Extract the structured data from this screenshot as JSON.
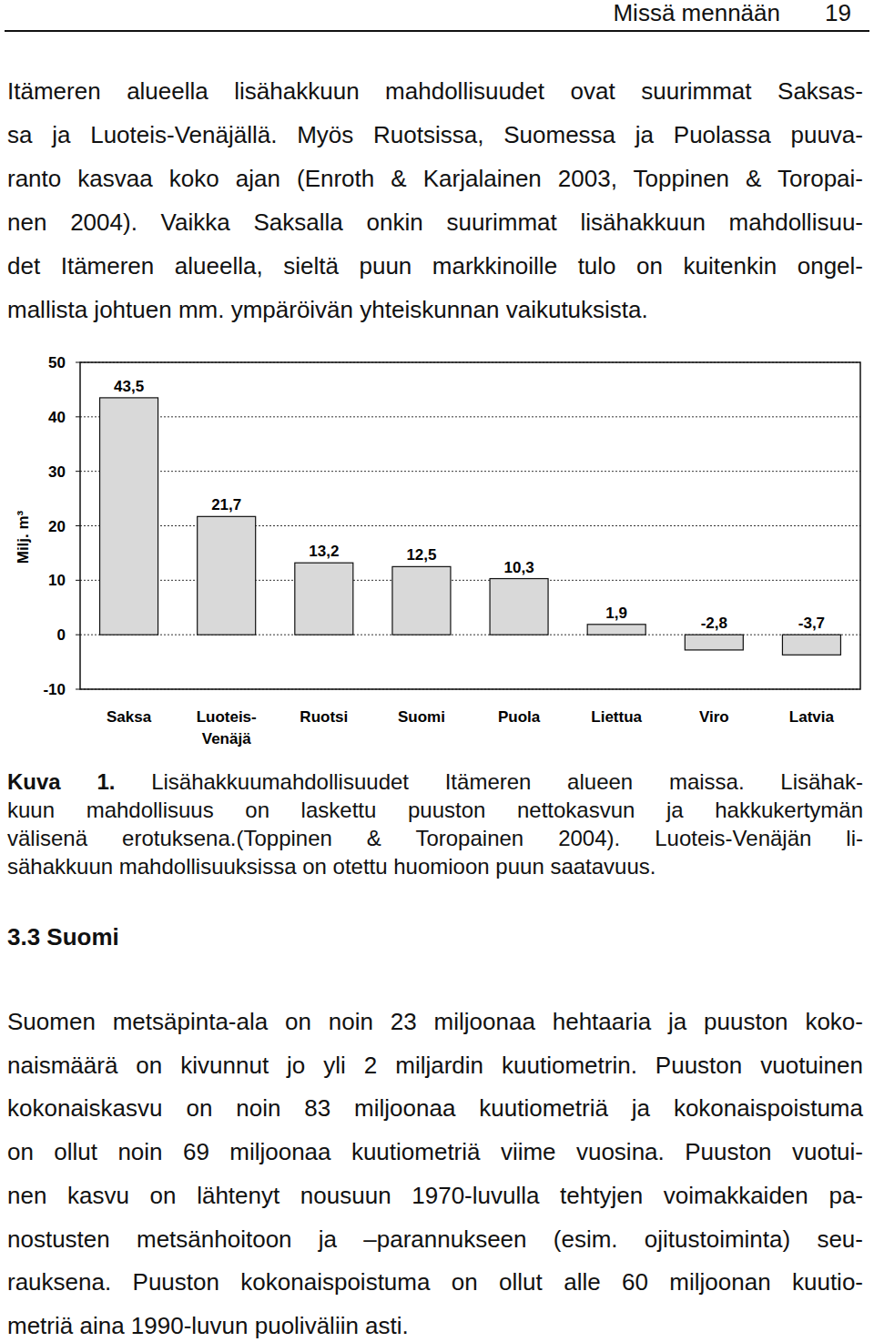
{
  "header": {
    "title": "Missä mennään",
    "page": "19"
  },
  "intro": {
    "lines": [
      "Itämeren alueella lisähakkuun mahdollisuudet ovat suurimmat Saksas-",
      "sa ja Luoteis-Venäjällä. Myös Ruotsissa, Suomessa ja Puolassa puuva-",
      "ranto kasvaa koko ajan (Enroth & Karjalainen 2003, Toppinen & Toropai-",
      "nen 2004). Vaikka Saksalla onkin suurimmat lisähakkuun mahdollisuu-",
      "det Itämeren alueella, sieltä puun markkinoille tulo on kuitenkin ongel-",
      "mallista johtuen mm. ympäröivän yhteiskunnan vaikutuksista."
    ]
  },
  "chart_data": {
    "type": "bar",
    "y_label": "Milj. m³",
    "categories": [
      "Saksa",
      "Luoteis-Venäjä",
      "Ruotsi",
      "Suomi",
      "Puola",
      "Liettua",
      "Viro",
      "Latvia"
    ],
    "values": [
      43.5,
      21.7,
      13.2,
      12.5,
      10.3,
      1.9,
      -2.8,
      -3.7
    ],
    "value_labels": [
      "43,5",
      "21,7",
      "13,2",
      "12,5",
      "10,3",
      "1,9",
      "-2,8",
      "-3,7"
    ],
    "data_labels": true,
    "color": "#d9d9d9",
    "ylim": [
      -10,
      50
    ],
    "yticks": [
      -10,
      0,
      10,
      20,
      30,
      40,
      50
    ],
    "grid": true
  },
  "caption": {
    "label": "Kuva 1.",
    "lines": [
      "Lisähakkuumahdollisuudet Itämeren alueen maissa. Lisähak-",
      "kuun mahdollisuus on laskettu puuston nettokasvun ja hakkukertymän",
      "välisenä erotuksena.(Toppinen & Toropainen 2004). Luoteis-Venäjän li-",
      "sähakkuun mahdollisuuksissa on otettu huomioon puun saatavuus."
    ]
  },
  "section": {
    "heading": "3.3 Suomi",
    "lines": [
      "Suomen metsäpinta-ala on noin 23 miljoonaa hehtaaria ja puuston koko-",
      "naismäärä on kivunnut jo yli 2 miljardin kuutiometrin. Puuston vuotuinen",
      "kokonaiskasvu on noin 83 miljoonaa kuutiometriä ja kokonaispoistuma",
      "on ollut noin 69 miljoonaa kuutiometriä viime vuosina.  Puuston vuotui-",
      "nen kasvu on lähtenyt nousuun 1970-luvulla tehtyjen voimakkaiden pa-",
      "nostusten metsänhoitoon ja –parannukseen (esim. ojitustoiminta) seu-",
      "rauksena. Puuston kokonaispoistuma on ollut alle 60 miljoonan kuutio-",
      "metriä aina 1990-luvun puoliväliin asti."
    ]
  }
}
